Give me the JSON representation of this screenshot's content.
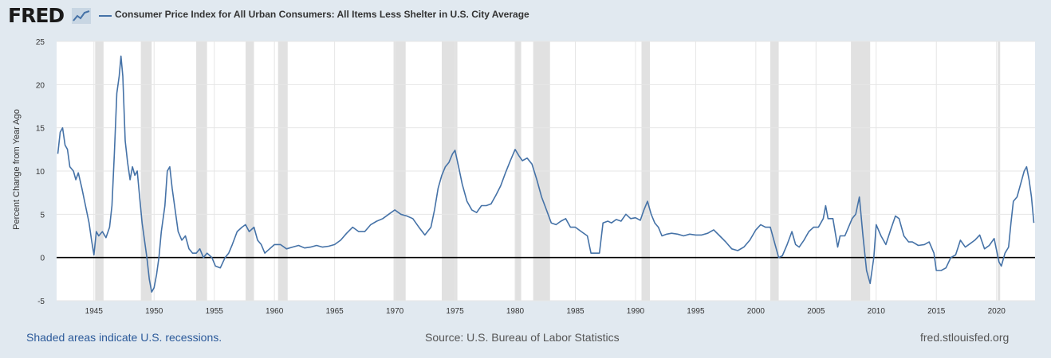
{
  "header": {
    "logo_text": "FRED",
    "logo_icon": "line-chart-icon"
  },
  "colors": {
    "series": "#4572a7",
    "recession": "#e1e1e1",
    "background": "#e1e9f0",
    "plot": "#ffffff",
    "zero": "#000000"
  },
  "footer": {
    "note": "Shaded areas indicate U.S. recessions.",
    "source": "Source: U.S. Bureau of Labor Statistics",
    "site": "fred.stlouisfed.org"
  },
  "chart_data": {
    "type": "line",
    "title": "",
    "xlabel": "",
    "ylabel": "Percent Change from Year Ago",
    "xlim": [
      1941.9,
      2023.2
    ],
    "ylim": [
      -5,
      25
    ],
    "grid": true,
    "legend_position": "top-left",
    "x_ticks": [
      1945,
      1950,
      1955,
      1960,
      1965,
      1970,
      1975,
      1980,
      1985,
      1990,
      1995,
      2000,
      2005,
      2010,
      2015,
      2020
    ],
    "y_ticks": [
      -5,
      0,
      5,
      10,
      15,
      20,
      25
    ],
    "recessions": [
      [
        1945.1,
        1945.8
      ],
      [
        1948.9,
        1949.8
      ],
      [
        1953.5,
        1954.4
      ],
      [
        1957.6,
        1958.3
      ],
      [
        1960.3,
        1961.1
      ],
      [
        1969.9,
        1970.9
      ],
      [
        1973.9,
        1975.2
      ],
      [
        1980.0,
        1980.5
      ],
      [
        1981.5,
        1982.9
      ],
      [
        1990.5,
        1991.2
      ],
      [
        2001.2,
        2001.9
      ],
      [
        2007.9,
        2009.5
      ],
      [
        2020.1,
        2020.3
      ]
    ],
    "series": [
      {
        "name": "Consumer Price Index for All Urban Consumers: All Items Less Shelter in U.S. City Average",
        "points": [
          [
            1942.0,
            12
          ],
          [
            1942.2,
            14.5
          ],
          [
            1942.4,
            15
          ],
          [
            1942.6,
            13
          ],
          [
            1942.8,
            12.5
          ],
          [
            1943.0,
            10.5
          ],
          [
            1943.3,
            10
          ],
          [
            1943.5,
            9
          ],
          [
            1943.7,
            9.8
          ],
          [
            1944.0,
            8
          ],
          [
            1944.3,
            6
          ],
          [
            1944.6,
            4
          ],
          [
            1944.8,
            2
          ],
          [
            1945.0,
            0.3
          ],
          [
            1945.2,
            3
          ],
          [
            1945.4,
            2.5
          ],
          [
            1945.7,
            3
          ],
          [
            1946.0,
            2.3
          ],
          [
            1946.3,
            3.5
          ],
          [
            1946.5,
            6
          ],
          [
            1946.7,
            12
          ],
          [
            1946.9,
            19
          ],
          [
            1947.1,
            21
          ],
          [
            1947.25,
            23.3
          ],
          [
            1947.4,
            21
          ],
          [
            1947.6,
            13.5
          ],
          [
            1947.8,
            11
          ],
          [
            1948.0,
            9
          ],
          [
            1948.2,
            10.5
          ],
          [
            1948.4,
            9.5
          ],
          [
            1948.6,
            10
          ],
          [
            1948.8,
            7
          ],
          [
            1949.0,
            4
          ],
          [
            1949.2,
            2
          ],
          [
            1949.4,
            0
          ],
          [
            1949.6,
            -2.5
          ],
          [
            1949.8,
            -4
          ],
          [
            1950.0,
            -3.5
          ],
          [
            1950.2,
            -2
          ],
          [
            1950.4,
            0
          ],
          [
            1950.6,
            3
          ],
          [
            1950.9,
            6
          ],
          [
            1951.1,
            10
          ],
          [
            1951.3,
            10.5
          ],
          [
            1951.5,
            8
          ],
          [
            1951.8,
            5
          ],
          [
            1952.0,
            3
          ],
          [
            1952.3,
            2
          ],
          [
            1952.6,
            2.5
          ],
          [
            1952.9,
            1
          ],
          [
            1953.2,
            0.5
          ],
          [
            1953.5,
            0.5
          ],
          [
            1953.8,
            1
          ],
          [
            1954.1,
            0
          ],
          [
            1954.4,
            0.5
          ],
          [
            1954.8,
            0
          ],
          [
            1955.1,
            -1
          ],
          [
            1955.5,
            -1.2
          ],
          [
            1955.9,
            0
          ],
          [
            1956.2,
            0.5
          ],
          [
            1956.5,
            1.5
          ],
          [
            1956.9,
            3
          ],
          [
            1957.3,
            3.5
          ],
          [
            1957.6,
            3.8
          ],
          [
            1957.9,
            3
          ],
          [
            1958.3,
            3.5
          ],
          [
            1958.6,
            2
          ],
          [
            1958.9,
            1.5
          ],
          [
            1959.2,
            0.5
          ],
          [
            1959.6,
            1
          ],
          [
            1960.0,
            1.5
          ],
          [
            1960.5,
            1.5
          ],
          [
            1961.0,
            1
          ],
          [
            1961.5,
            1.2
          ],
          [
            1962.0,
            1.4
          ],
          [
            1962.5,
            1.1
          ],
          [
            1963.0,
            1.2
          ],
          [
            1963.5,
            1.4
          ],
          [
            1964.0,
            1.2
          ],
          [
            1964.5,
            1.3
          ],
          [
            1965.0,
            1.5
          ],
          [
            1965.5,
            2
          ],
          [
            1966.0,
            2.8
          ],
          [
            1966.5,
            3.5
          ],
          [
            1967.0,
            3
          ],
          [
            1967.5,
            3
          ],
          [
            1968.0,
            3.8
          ],
          [
            1968.5,
            4.2
          ],
          [
            1969.0,
            4.5
          ],
          [
            1969.5,
            5
          ],
          [
            1970.0,
            5.5
          ],
          [
            1970.5,
            5
          ],
          [
            1971.0,
            4.8
          ],
          [
            1971.5,
            4.5
          ],
          [
            1972.0,
            3.5
          ],
          [
            1972.5,
            2.6
          ],
          [
            1973.0,
            3.5
          ],
          [
            1973.3,
            5.5
          ],
          [
            1973.6,
            8
          ],
          [
            1973.9,
            9.5
          ],
          [
            1974.2,
            10.5
          ],
          [
            1974.5,
            11
          ],
          [
            1974.8,
            12
          ],
          [
            1975.0,
            12.4
          ],
          [
            1975.3,
            10.5
          ],
          [
            1975.6,
            8.5
          ],
          [
            1976.0,
            6.5
          ],
          [
            1976.4,
            5.5
          ],
          [
            1976.8,
            5.2
          ],
          [
            1977.2,
            6
          ],
          [
            1977.6,
            6
          ],
          [
            1978.0,
            6.2
          ],
          [
            1978.4,
            7.2
          ],
          [
            1978.8,
            8.3
          ],
          [
            1979.2,
            9.8
          ],
          [
            1979.6,
            11.2
          ],
          [
            1980.0,
            12.5
          ],
          [
            1980.3,
            11.8
          ],
          [
            1980.6,
            11.2
          ],
          [
            1981.0,
            11.5
          ],
          [
            1981.4,
            10.8
          ],
          [
            1981.8,
            9
          ],
          [
            1982.2,
            7
          ],
          [
            1982.6,
            5.5
          ],
          [
            1983.0,
            4
          ],
          [
            1983.4,
            3.8
          ],
          [
            1983.8,
            4.2
          ],
          [
            1984.2,
            4.5
          ],
          [
            1984.6,
            3.5
          ],
          [
            1985.0,
            3.5
          ],
          [
            1985.5,
            3
          ],
          [
            1986.0,
            2.5
          ],
          [
            1986.3,
            0.5
          ],
          [
            1986.6,
            0.5
          ],
          [
            1987.0,
            0.5
          ],
          [
            1987.3,
            4
          ],
          [
            1987.7,
            4.2
          ],
          [
            1988.0,
            4
          ],
          [
            1988.4,
            4.4
          ],
          [
            1988.8,
            4.2
          ],
          [
            1989.2,
            5
          ],
          [
            1989.6,
            4.5
          ],
          [
            1990.0,
            4.6
          ],
          [
            1990.4,
            4.3
          ],
          [
            1990.7,
            5.5
          ],
          [
            1991.0,
            6.5
          ],
          [
            1991.3,
            5
          ],
          [
            1991.6,
            4
          ],
          [
            1991.9,
            3.5
          ],
          [
            1992.2,
            2.5
          ],
          [
            1992.6,
            2.7
          ],
          [
            1993.0,
            2.8
          ],
          [
            1993.5,
            2.7
          ],
          [
            1994.0,
            2.5
          ],
          [
            1994.5,
            2.7
          ],
          [
            1995.0,
            2.6
          ],
          [
            1995.5,
            2.6
          ],
          [
            1996.0,
            2.8
          ],
          [
            1996.5,
            3.2
          ],
          [
            1997.0,
            2.5
          ],
          [
            1997.5,
            1.8
          ],
          [
            1998.0,
            1
          ],
          [
            1998.5,
            0.8
          ],
          [
            1999.0,
            1.2
          ],
          [
            1999.5,
            2
          ],
          [
            2000.0,
            3.2
          ],
          [
            2000.4,
            3.8
          ],
          [
            2000.8,
            3.5
          ],
          [
            2001.2,
            3.5
          ],
          [
            2001.6,
            1.5
          ],
          [
            2001.9,
            0
          ],
          [
            2002.2,
            0.2
          ],
          [
            2002.6,
            1.5
          ],
          [
            2003.0,
            3
          ],
          [
            2003.3,
            1.5
          ],
          [
            2003.6,
            1.2
          ],
          [
            2004.0,
            2
          ],
          [
            2004.4,
            3
          ],
          [
            2004.8,
            3.5
          ],
          [
            2005.2,
            3.5
          ],
          [
            2005.6,
            4.5
          ],
          [
            2005.8,
            6
          ],
          [
            2006.0,
            4.5
          ],
          [
            2006.4,
            4.5
          ],
          [
            2006.8,
            1.2
          ],
          [
            2007.0,
            2.5
          ],
          [
            2007.4,
            2.5
          ],
          [
            2007.7,
            3.5
          ],
          [
            2008.0,
            4.5
          ],
          [
            2008.3,
            5
          ],
          [
            2008.6,
            7
          ],
          [
            2008.9,
            2.5
          ],
          [
            2009.2,
            -1.5
          ],
          [
            2009.5,
            -3
          ],
          [
            2009.8,
            0
          ],
          [
            2010.0,
            3.8
          ],
          [
            2010.4,
            2.5
          ],
          [
            2010.8,
            1.5
          ],
          [
            2011.2,
            3.2
          ],
          [
            2011.6,
            4.8
          ],
          [
            2011.9,
            4.5
          ],
          [
            2012.3,
            2.5
          ],
          [
            2012.7,
            1.8
          ],
          [
            2013.0,
            1.8
          ],
          [
            2013.5,
            1.4
          ],
          [
            2014.0,
            1.5
          ],
          [
            2014.4,
            1.8
          ],
          [
            2014.8,
            0.5
          ],
          [
            2015.0,
            -1.5
          ],
          [
            2015.4,
            -1.5
          ],
          [
            2015.8,
            -1.2
          ],
          [
            2016.2,
            0
          ],
          [
            2016.6,
            0.3
          ],
          [
            2017.0,
            2
          ],
          [
            2017.4,
            1.2
          ],
          [
            2017.8,
            1.6
          ],
          [
            2018.2,
            2
          ],
          [
            2018.6,
            2.6
          ],
          [
            2019.0,
            1
          ],
          [
            2019.4,
            1.4
          ],
          [
            2019.8,
            2.2
          ],
          [
            2020.2,
            -0.5
          ],
          [
            2020.4,
            -1
          ],
          [
            2020.7,
            0.5
          ],
          [
            2021.0,
            1.2
          ],
          [
            2021.2,
            4
          ],
          [
            2021.4,
            6.5
          ],
          [
            2021.7,
            7
          ],
          [
            2022.0,
            8.5
          ],
          [
            2022.3,
            10
          ],
          [
            2022.5,
            10.5
          ],
          [
            2022.7,
            9
          ],
          [
            2022.9,
            7
          ],
          [
            2023.1,
            4
          ]
        ]
      }
    ]
  }
}
